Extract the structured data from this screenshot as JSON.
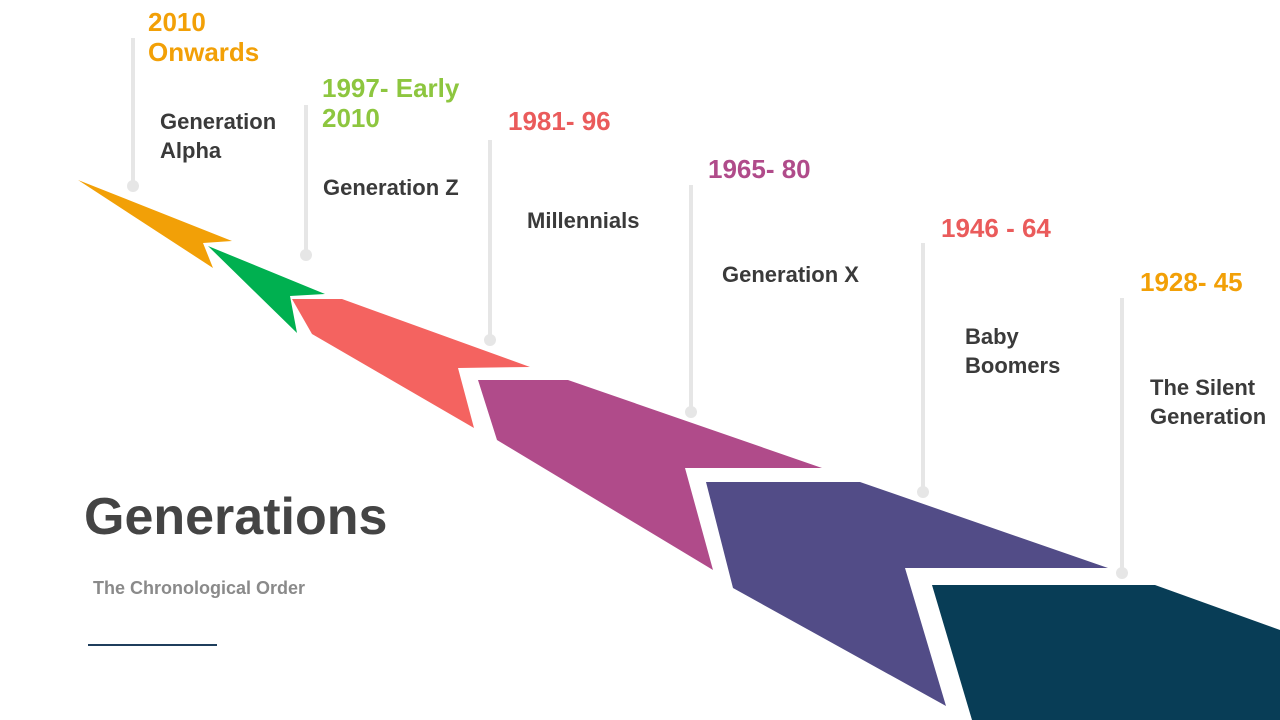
{
  "title": "Generations",
  "subtitle": "The Chronological Order",
  "items": [
    {
      "period": "2010 Onwards",
      "name": "Generation Alpha"
    },
    {
      "period": "1997- Early 2010",
      "name": "Generation Z"
    },
    {
      "period": "1981- 96",
      "name": "Millennials"
    },
    {
      "period": "1965- 80",
      "name": "Generation X"
    },
    {
      "period": "1946 - 64",
      "name": "Baby Boomers"
    },
    {
      "period": "1928- 45",
      "name": "The Silent Generation"
    }
  ]
}
